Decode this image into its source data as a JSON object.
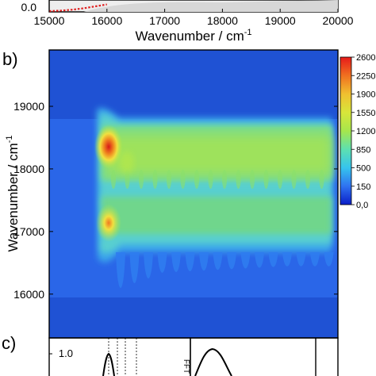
{
  "panel_labels": {
    "b": "b)",
    "c": "c)"
  },
  "colors": {
    "background": "#ffffff",
    "plot_background": "#1f52d4",
    "spectrum_line": "#e02020",
    "axis": "#000000"
  },
  "chart_data": [
    {
      "panel": "a",
      "type": "line",
      "title": "",
      "xlabel": "Wavenumber / cm",
      "xlabel_superscript": "-1",
      "ylabel": "",
      "xlim": [
        15000,
        20000
      ],
      "x_ticks": [
        "15000",
        "16000",
        "17000",
        "18000",
        "19000",
        "20000"
      ],
      "y_ticks": [
        "0.0"
      ],
      "series": [
        {
          "x": [
            15000,
            15200,
            15400,
            15600,
            15800,
            16000
          ],
          "y": [
            0.0,
            0.01,
            0.03,
            0.06,
            0.1,
            0.14
          ]
        }
      ]
    },
    {
      "panel": "b",
      "type": "heatmap",
      "title": "",
      "xlabel": "",
      "ylabel": "Wavenumber / cm",
      "ylabel_superscript": "-1",
      "ylim": [
        15300,
        19900
      ],
      "y_ticks": [
        "16000",
        "17000",
        "18000",
        "19000"
      ],
      "colorbar": {
        "ticks": [
          "2600",
          "2250",
          "1900",
          "1550",
          "1200",
          "850",
          "500",
          "150",
          "0,0"
        ],
        "colors": [
          "#0a1ec8",
          "#2f72f0",
          "#36c4ee",
          "#5de0b0",
          "#a6e64c",
          "#d8e63a",
          "#f0c030",
          "#f07020",
          "#e61a1a"
        ]
      },
      "features": [
        {
          "label": "band-upper",
          "y_range": [
            17550,
            18850
          ],
          "peak_y": 18350,
          "peak_value": 2600
        },
        {
          "label": "band-lower",
          "y_range": [
            16500,
            17500
          ],
          "peak_y": 16980,
          "peak_value": 1900
        }
      ]
    },
    {
      "panel": "c",
      "type": "line",
      "title": "",
      "xlabel": "",
      "ylabel": "",
      "y_ticks": [
        "1.0"
      ],
      "right_axis_label": "FFT"
    }
  ]
}
